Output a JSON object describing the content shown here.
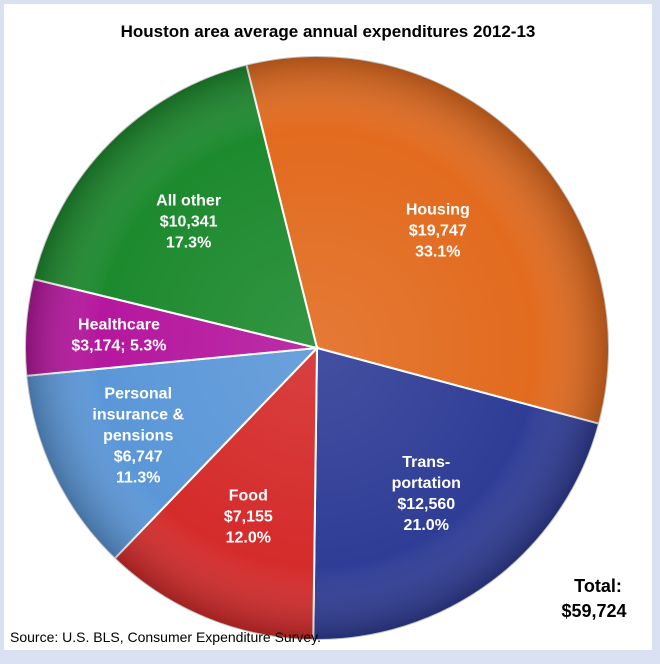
{
  "chart_data": {
    "type": "pie",
    "title": "Houston area average annual expenditures 2012-13",
    "slices": [
      {
        "name": "Housing",
        "value": 19747,
        "percent": 33.1,
        "color": "#e26b1f",
        "label_lines": [
          "Housing",
          "$19,747",
          "33.1%"
        ]
      },
      {
        "name": "Transportation",
        "value": 12560,
        "percent": 21.0,
        "color": "#2f3d96",
        "label_lines": [
          "Trans-",
          "portation",
          "$12,560",
          "21.0%"
        ]
      },
      {
        "name": "Food",
        "value": 7155,
        "percent": 12.0,
        "color": "#d52b2b",
        "label_lines": [
          "Food",
          "$7,155",
          "12.0%"
        ]
      },
      {
        "name": "Personal insurance & pensions",
        "value": 6747,
        "percent": 11.3,
        "color": "#5b97d8",
        "label_lines": [
          "Personal",
          "insurance &",
          "pensions",
          "$6,747",
          "11.3%"
        ]
      },
      {
        "name": "Healthcare",
        "value": 3174,
        "percent": 5.3,
        "color": "#b5179e",
        "label_lines": [
          "Healthcare",
          "$3,174; 5.3%"
        ]
      },
      {
        "name": "All other",
        "value": 10341,
        "percent": 17.3,
        "color": "#1d8a2e",
        "label_lines": [
          "All other",
          "$10,341",
          "17.3%"
        ]
      }
    ],
    "total_label": "Total:",
    "total_value": "$59,724",
    "source": "Source: U.S. BLS, Consumer Expenditure Survey."
  }
}
